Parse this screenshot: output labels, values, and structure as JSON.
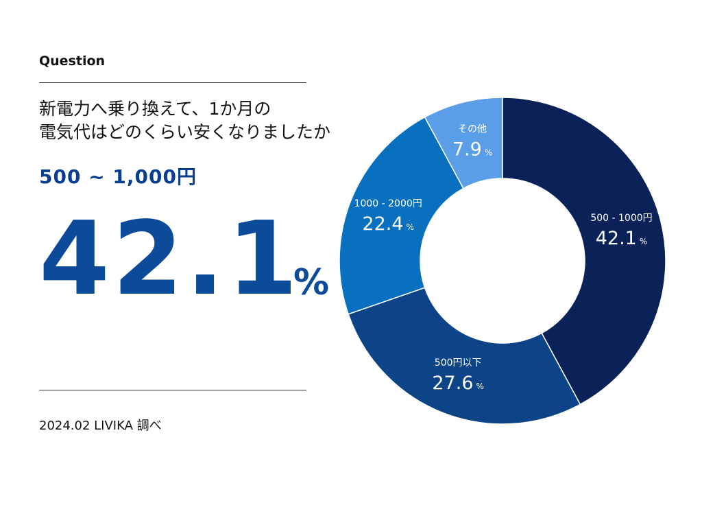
{
  "header": {
    "label": "Question"
  },
  "question": {
    "line1": "新電力へ乗り換えて、1か月の",
    "line2": "電気代はどのくらい安くなりましたか"
  },
  "highlight": {
    "range": "500 ~ 1,000円",
    "value": "42.1",
    "unit": "%"
  },
  "footer": {
    "source": "2024.02 LIVIKA 調べ"
  },
  "chart_data": {
    "type": "pie",
    "categories": [
      "500 - 1000円",
      "500円以下",
      "1000 - 2000円",
      "その他"
    ],
    "values": [
      42.1,
      27.6,
      22.4,
      7.9
    ],
    "value_unit": "%",
    "colors": [
      "#0b2259",
      "#0d4488",
      "#0870be",
      "#5a9ee8"
    ]
  }
}
